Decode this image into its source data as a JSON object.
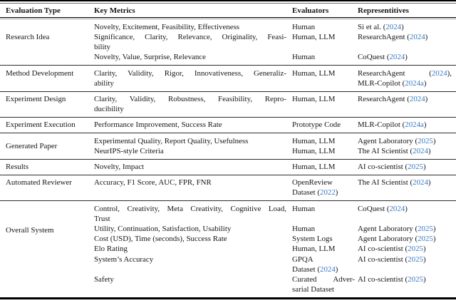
{
  "page": {
    "background": "#ffffff",
    "text_color": "#161616",
    "link_color": "#3878c2"
  },
  "table": {
    "columns": [
      "Evaluation Type",
      "Key Metrics",
      "Evaluators",
      "Representitives"
    ],
    "groups": [
      {
        "type": "Research Idea",
        "rows": [
          {
            "metrics": [
              "Novelty, Excitement, Feasibility, Effectiveness"
            ],
            "evaluators": [
              "Human"
            ],
            "reps": [
              [
                {
                  "t": "Si et al. ("
                },
                {
                  "t": "2024",
                  "link": true
                },
                {
                  "t": ")"
                }
              ]
            ]
          },
          {
            "metrics": [
              "Significance, Clarity, Relevance, Originality, Feasi-",
              "bility"
            ],
            "evaluators": [
              "Human, LLM"
            ],
            "reps": [
              [
                {
                  "t": "ResearchAgent ("
                },
                {
                  "t": "2024",
                  "link": true
                },
                {
                  "t": ")"
                }
              ]
            ]
          },
          {
            "metrics": [
              "Novelty, Value, Surprise, Relevance"
            ],
            "evaluators": [
              "Human"
            ],
            "reps": [
              [
                {
                  "t": "CoQuest ("
                },
                {
                  "t": "2024",
                  "link": true
                },
                {
                  "t": ")"
                }
              ]
            ]
          }
        ]
      },
      {
        "type": "Method Development",
        "rows": [
          {
            "metrics": [
              "Clarity, Validity, Rigor, Innovativeness, Generaliz-",
              "ability"
            ],
            "evaluators": [
              "Human, LLM"
            ],
            "reps": [
              [
                {
                  "t": "ResearchAgent ("
                },
                {
                  "t": "2024",
                  "link": true
                },
                {
                  "t": "),"
                }
              ],
              [
                {
                  "t": "MLR-Copilot ("
                },
                {
                  "t": "2024a",
                  "link": true
                },
                {
                  "t": ")"
                }
              ]
            ]
          }
        ]
      },
      {
        "type": "Experiment Design",
        "rows": [
          {
            "metrics": [
              "Clarity, Validity, Robustness, Feasibility, Repro-",
              "ducibility"
            ],
            "evaluators": [
              "Human, LLM"
            ],
            "reps": [
              [
                {
                  "t": "ResearchAgent ("
                },
                {
                  "t": "2024",
                  "link": true
                },
                {
                  "t": ")"
                }
              ]
            ]
          }
        ]
      },
      {
        "type": "Experiment Execution",
        "rows": [
          {
            "metrics": [
              "Performance Improvement, Success Rate"
            ],
            "evaluators": [
              "Prototype Code"
            ],
            "reps": [
              [
                {
                  "t": "MLR-Copilot ("
                },
                {
                  "t": "2024a",
                  "link": true
                },
                {
                  "t": ")"
                }
              ]
            ]
          }
        ]
      },
      {
        "type": "Generated Paper",
        "rows": [
          {
            "metrics": [
              "Experimental Quality, Report Quality, Usefulness"
            ],
            "evaluators": [
              "Human, LLM"
            ],
            "reps": [
              [
                {
                  "t": "Agent Laboratory ("
                },
                {
                  "t": "2025",
                  "link": true
                },
                {
                  "t": ")"
                }
              ]
            ]
          },
          {
            "metrics": [
              "NeurIPS-style Criteria"
            ],
            "evaluators": [
              "Human, LLM"
            ],
            "reps": [
              [
                {
                  "t": "The AI Scientist ("
                },
                {
                  "t": "2024",
                  "link": true
                },
                {
                  "t": ")"
                }
              ]
            ]
          }
        ]
      },
      {
        "type": "Results",
        "rows": [
          {
            "metrics": [
              "Novelty, Impact"
            ],
            "evaluators": [
              "Human, LLM"
            ],
            "reps": [
              [
                {
                  "t": "AI co-scientist ("
                },
                {
                  "t": "2025",
                  "link": true
                },
                {
                  "t": ")"
                }
              ]
            ]
          }
        ]
      },
      {
        "type": "Automated Reviewer",
        "rows": [
          {
            "metrics": [
              "Accuracy, F1 Score, AUC, FPR, FNR"
            ],
            "evaluators": [
              "OpenReview",
              [
                {
                  "t": "Dataset ("
                },
                {
                  "t": "2022",
                  "link": true
                },
                {
                  "t": ")"
                }
              ]
            ],
            "reps": [
              [
                {
                  "t": "The AI Scientist ("
                },
                {
                  "t": "2024",
                  "link": true
                },
                {
                  "t": ")"
                }
              ]
            ]
          }
        ]
      },
      {
        "type": "Overall System",
        "rows": [
          {
            "metrics": [
              "Control, Creativity, Meta Creativity, Cognitive Load,",
              "Trust"
            ],
            "evaluators": [
              "Human"
            ],
            "reps": [
              [
                {
                  "t": "CoQuest ("
                },
                {
                  "t": "2024",
                  "link": true
                },
                {
                  "t": ")"
                }
              ]
            ]
          },
          {
            "metrics": [
              "Utility, Continuation, Satisfaction, Usability"
            ],
            "evaluators": [
              "Human"
            ],
            "reps": [
              [
                {
                  "t": "Agent Laboratory ("
                },
                {
                  "t": "2025",
                  "link": true
                },
                {
                  "t": ")"
                }
              ]
            ]
          },
          {
            "metrics": [
              "Cost (USD), Time (seconds), Success Rate"
            ],
            "evaluators": [
              "System Logs"
            ],
            "reps": [
              [
                {
                  "t": "Agent Laboratory ("
                },
                {
                  "t": "2025",
                  "link": true
                },
                {
                  "t": ")"
                }
              ]
            ]
          },
          {
            "metrics": [
              "Elo Rating"
            ],
            "evaluators": [
              "Human, LLM"
            ],
            "reps": [
              [
                {
                  "t": "AI co-scientist ("
                },
                {
                  "t": "2025",
                  "link": true
                },
                {
                  "t": ")"
                }
              ]
            ]
          },
          {
            "metrics": [
              "System’s Accuracy"
            ],
            "evaluators": [
              "GPQA",
              [
                {
                  "t": "Dataset ("
                },
                {
                  "t": "2024",
                  "link": true
                },
                {
                  "t": ")"
                }
              ]
            ],
            "reps": [
              [
                {
                  "t": "AI co-scientist ("
                },
                {
                  "t": "2025",
                  "link": true
                },
                {
                  "t": ")"
                }
              ]
            ]
          },
          {
            "metrics": [
              "Safety"
            ],
            "evaluators": [
              "Curated Adver-",
              "sarial Dataset"
            ],
            "reps": [
              [
                {
                  "t": "AI co-scientist ("
                },
                {
                  "t": "2025",
                  "link": true
                },
                {
                  "t": ")"
                }
              ]
            ]
          }
        ]
      }
    ]
  }
}
